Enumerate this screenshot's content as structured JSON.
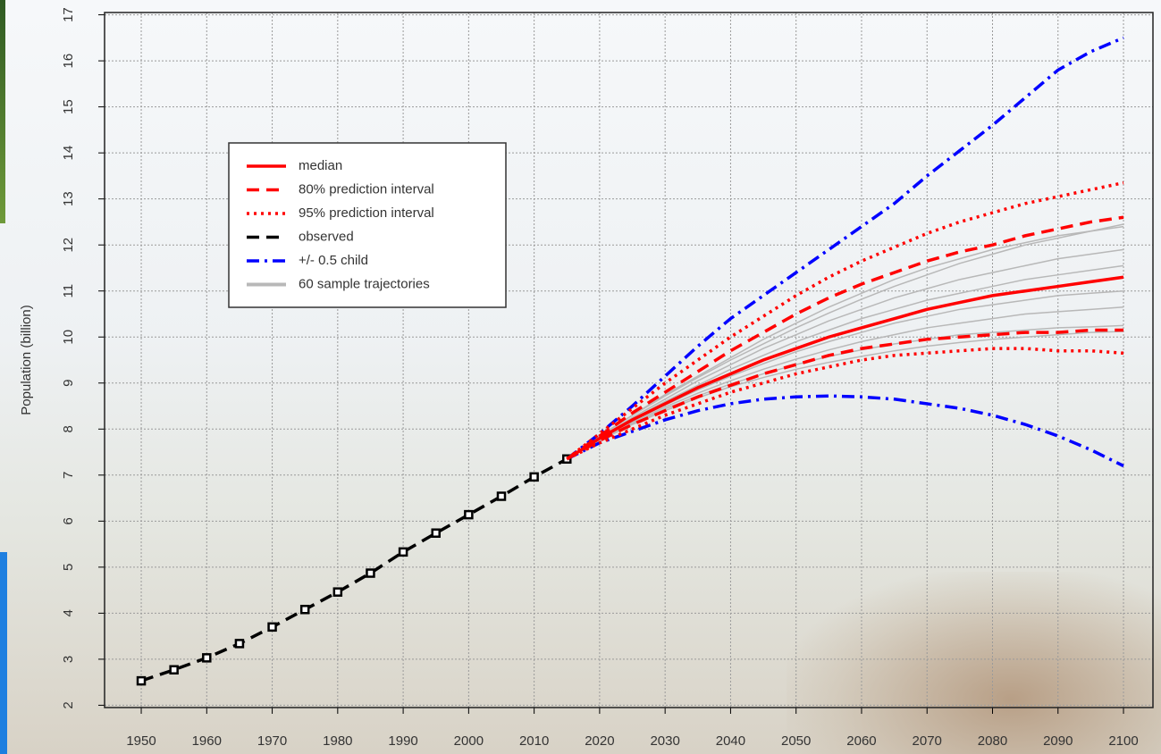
{
  "chart_data": {
    "type": "line",
    "y_label": "Population (billion)",
    "xlim": [
      1944.4,
      2104.5
    ],
    "ylim": [
      1.95,
      17.05
    ],
    "xticks": [
      1950,
      1960,
      1970,
      1980,
      1990,
      2000,
      2010,
      2020,
      2030,
      2040,
      2050,
      2060,
      2070,
      2080,
      2090,
      2100
    ],
    "yticks": [
      2,
      3,
      4,
      5,
      6,
      7,
      8,
      9,
      10,
      11,
      12,
      13,
      14,
      15,
      16,
      17
    ],
    "grid": true,
    "legend": "upper-left",
    "series": [
      {
        "name": "median",
        "color": "#ff0000",
        "style": "solid",
        "x": [
          2015,
          2020,
          2025,
          2030,
          2035,
          2040,
          2045,
          2050,
          2055,
          2060,
          2065,
          2070,
          2075,
          2080,
          2085,
          2090,
          2095,
          2100
        ],
        "lines": [
          [
            7.35,
            7.8,
            8.2,
            8.55,
            8.9,
            9.2,
            9.5,
            9.75,
            10.0,
            10.2,
            10.4,
            10.6,
            10.75,
            10.9,
            11.0,
            11.1,
            11.2,
            11.3
          ]
        ]
      },
      {
        "name": "80% prediction interval",
        "color": "#ff0000",
        "style": "dashed",
        "x": [
          2015,
          2020,
          2025,
          2030,
          2035,
          2040,
          2045,
          2050,
          2055,
          2060,
          2065,
          2070,
          2075,
          2080,
          2085,
          2090,
          2095,
          2100
        ],
        "lines": [
          [
            7.35,
            7.85,
            8.35,
            8.8,
            9.25,
            9.7,
            10.1,
            10.5,
            10.85,
            11.15,
            11.4,
            11.65,
            11.85,
            12.0,
            12.2,
            12.35,
            12.5,
            12.6
          ],
          [
            7.35,
            7.75,
            8.1,
            8.4,
            8.7,
            8.95,
            9.2,
            9.4,
            9.6,
            9.75,
            9.85,
            9.95,
            10.0,
            10.05,
            10.1,
            10.1,
            10.15,
            10.15
          ]
        ]
      },
      {
        "name": "95% prediction interval",
        "color": "#ff0000",
        "style": "dotted",
        "x": [
          2015,
          2020,
          2025,
          2030,
          2035,
          2040,
          2045,
          2050,
          2055,
          2060,
          2065,
          2070,
          2075,
          2080,
          2085,
          2090,
          2095,
          2100
        ],
        "lines": [
          [
            7.35,
            7.9,
            8.45,
            9.0,
            9.5,
            10.0,
            10.45,
            10.9,
            11.3,
            11.65,
            11.95,
            12.25,
            12.5,
            12.7,
            12.9,
            13.05,
            13.2,
            13.35
          ],
          [
            7.35,
            7.7,
            8.0,
            8.3,
            8.55,
            8.8,
            9.0,
            9.2,
            9.35,
            9.5,
            9.6,
            9.65,
            9.7,
            9.75,
            9.75,
            9.7,
            9.7,
            9.65
          ]
        ]
      },
      {
        "name": "observed",
        "color": "#000000",
        "style": "dashed",
        "markers": true,
        "x": [
          1950,
          1955,
          1960,
          1965,
          1970,
          1975,
          1980,
          1985,
          1990,
          1995,
          2000,
          2005,
          2010,
          2015
        ],
        "lines": [
          [
            2.53,
            2.77,
            3.03,
            3.34,
            3.7,
            4.08,
            4.46,
            4.87,
            5.33,
            5.74,
            6.14,
            6.54,
            6.96,
            7.35
          ]
        ]
      },
      {
        "name": "+/- 0.5 child",
        "color": "#0000ff",
        "style": "dotdash",
        "x": [
          2015,
          2020,
          2025,
          2030,
          2035,
          2040,
          2045,
          2050,
          2055,
          2060,
          2065,
          2070,
          2075,
          2080,
          2085,
          2090,
          2095,
          2100
        ],
        "lines": [
          [
            7.35,
            7.9,
            8.5,
            9.15,
            9.8,
            10.4,
            10.9,
            11.4,
            11.9,
            12.4,
            12.9,
            13.5,
            14.05,
            14.6,
            15.2,
            15.8,
            16.2,
            16.5
          ],
          [
            7.35,
            7.7,
            7.95,
            8.2,
            8.4,
            8.55,
            8.65,
            8.7,
            8.72,
            8.7,
            8.65,
            8.55,
            8.45,
            8.3,
            8.1,
            7.85,
            7.55,
            7.2
          ]
        ]
      },
      {
        "name": "60 sample trajectories",
        "color": "#b8b8b8",
        "style": "solid",
        "x": [
          2015,
          2020,
          2025,
          2030,
          2035,
          2040,
          2045,
          2050,
          2055,
          2060,
          2065,
          2070,
          2075,
          2080,
          2085,
          2090,
          2095,
          2100
        ],
        "lines": [
          [
            7.35,
            7.85,
            8.3,
            8.75,
            9.15,
            9.55,
            9.95,
            10.3,
            10.65,
            10.95,
            11.25,
            11.5,
            11.7,
            11.9,
            12.05,
            12.2,
            12.3,
            12.4
          ],
          [
            7.35,
            7.82,
            8.25,
            8.65,
            9.05,
            9.4,
            9.75,
            10.05,
            10.35,
            10.6,
            10.85,
            11.05,
            11.25,
            11.4,
            11.55,
            11.7,
            11.8,
            11.9
          ],
          [
            7.35,
            7.8,
            8.22,
            8.6,
            8.95,
            9.3,
            9.6,
            9.9,
            10.15,
            10.4,
            10.6,
            10.8,
            10.95,
            11.1,
            11.25,
            11.35,
            11.45,
            11.55
          ],
          [
            7.35,
            7.8,
            8.18,
            8.52,
            8.85,
            9.15,
            9.42,
            9.68,
            9.9,
            10.1,
            10.3,
            10.45,
            10.6,
            10.7,
            10.8,
            10.9,
            10.95,
            11.0
          ],
          [
            7.35,
            7.78,
            8.15,
            8.48,
            8.78,
            9.05,
            9.3,
            9.52,
            9.72,
            9.9,
            10.05,
            10.2,
            10.3,
            10.4,
            10.5,
            10.55,
            10.6,
            10.65
          ],
          [
            7.35,
            7.76,
            8.12,
            8.44,
            8.72,
            8.98,
            9.2,
            9.4,
            9.58,
            9.72,
            9.85,
            9.95,
            10.05,
            10.1,
            10.15,
            10.2,
            10.22,
            10.25
          ],
          [
            7.35,
            7.85,
            8.3,
            8.72,
            9.12,
            9.5,
            9.85,
            10.2,
            10.52,
            10.82,
            11.1,
            11.35,
            11.6,
            11.8,
            12.0,
            12.15,
            12.3,
            12.45
          ],
          [
            7.35,
            7.75,
            8.1,
            8.4,
            8.68,
            8.92,
            9.12,
            9.3,
            9.45,
            9.58,
            9.7,
            9.8,
            9.88,
            9.95,
            10.0,
            10.05,
            10.1,
            10.12
          ]
        ]
      }
    ]
  }
}
